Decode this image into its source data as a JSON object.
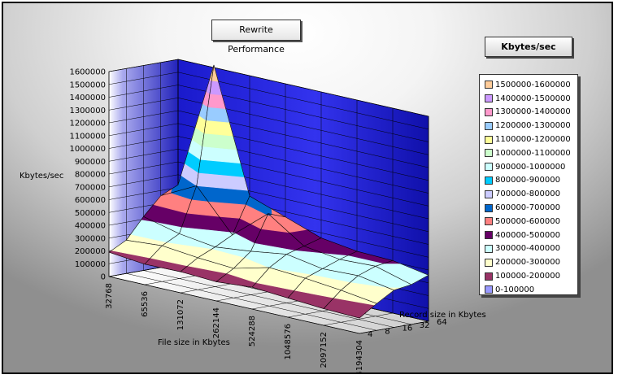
{
  "chart_data": {
    "type": "surface-3d",
    "title": "Rewrite Performance",
    "xlabel": "File size in Kbytes",
    "ylabel": "Kbytes/sec",
    "zlabel": "Record size in Kbytes",
    "legend_title": "Kbytes/sec",
    "file_sizes": [
      "32768",
      "65536",
      "131072",
      "262144",
      "524288",
      "1048576",
      "2097152",
      "4194304"
    ],
    "record_sizes": [
      "4",
      "8",
      "16",
      "32",
      "64"
    ],
    "ylim": [
      0,
      1600000
    ],
    "y_ticks": [
      "0",
      "100000",
      "200000",
      "300000",
      "400000",
      "500000",
      "600000",
      "700000",
      "800000",
      "900000",
      "1000000",
      "1100000",
      "1200000",
      "1300000",
      "1400000",
      "1500000",
      "1600000"
    ],
    "values": [
      [
        190000,
        160000,
        165000,
        150000,
        170000,
        150000,
        130000,
        120000
      ],
      [
        260000,
        280000,
        250000,
        230000,
        300000,
        280000,
        250000,
        210000
      ],
      [
        420000,
        350000,
        310000,
        340000,
        380000,
        330000,
        340000,
        290000
      ],
      [
        560000,
        700000,
        380000,
        610000,
        420000,
        380000,
        390000,
        310000
      ],
      [
        620000,
        1620000,
        660000,
        560000,
        460000,
        420000,
        410000,
        360000
      ]
    ],
    "legend": [
      {
        "label": "1500000-1600000",
        "color": "#ffcc99"
      },
      {
        "label": "1400000-1500000",
        "color": "#cc99ff"
      },
      {
        "label": "1300000-1400000",
        "color": "#ff99cc"
      },
      {
        "label": "1200000-1300000",
        "color": "#99ccff"
      },
      {
        "label": "1100000-1200000",
        "color": "#ffff99"
      },
      {
        "label": "1000000-1100000",
        "color": "#ccffcc"
      },
      {
        "label": "900000-1000000",
        "color": "#ccffff"
      },
      {
        "label": "800000-900000",
        "color": "#00ccff"
      },
      {
        "label": "700000-800000",
        "color": "#ccccff"
      },
      {
        "label": "600000-700000",
        "color": "#0066cc"
      },
      {
        "label": "500000-600000",
        "color": "#ff8080"
      },
      {
        "label": "400000-500000",
        "color": "#660066"
      },
      {
        "label": "300000-400000",
        "color": "#ccffff"
      },
      {
        "label": "200000-300000",
        "color": "#ffffcc"
      },
      {
        "label": "100000-200000",
        "color": "#993366"
      },
      {
        "label": "0-100000",
        "color": "#9999ff"
      }
    ],
    "grid": true,
    "legend_position": "right"
  }
}
